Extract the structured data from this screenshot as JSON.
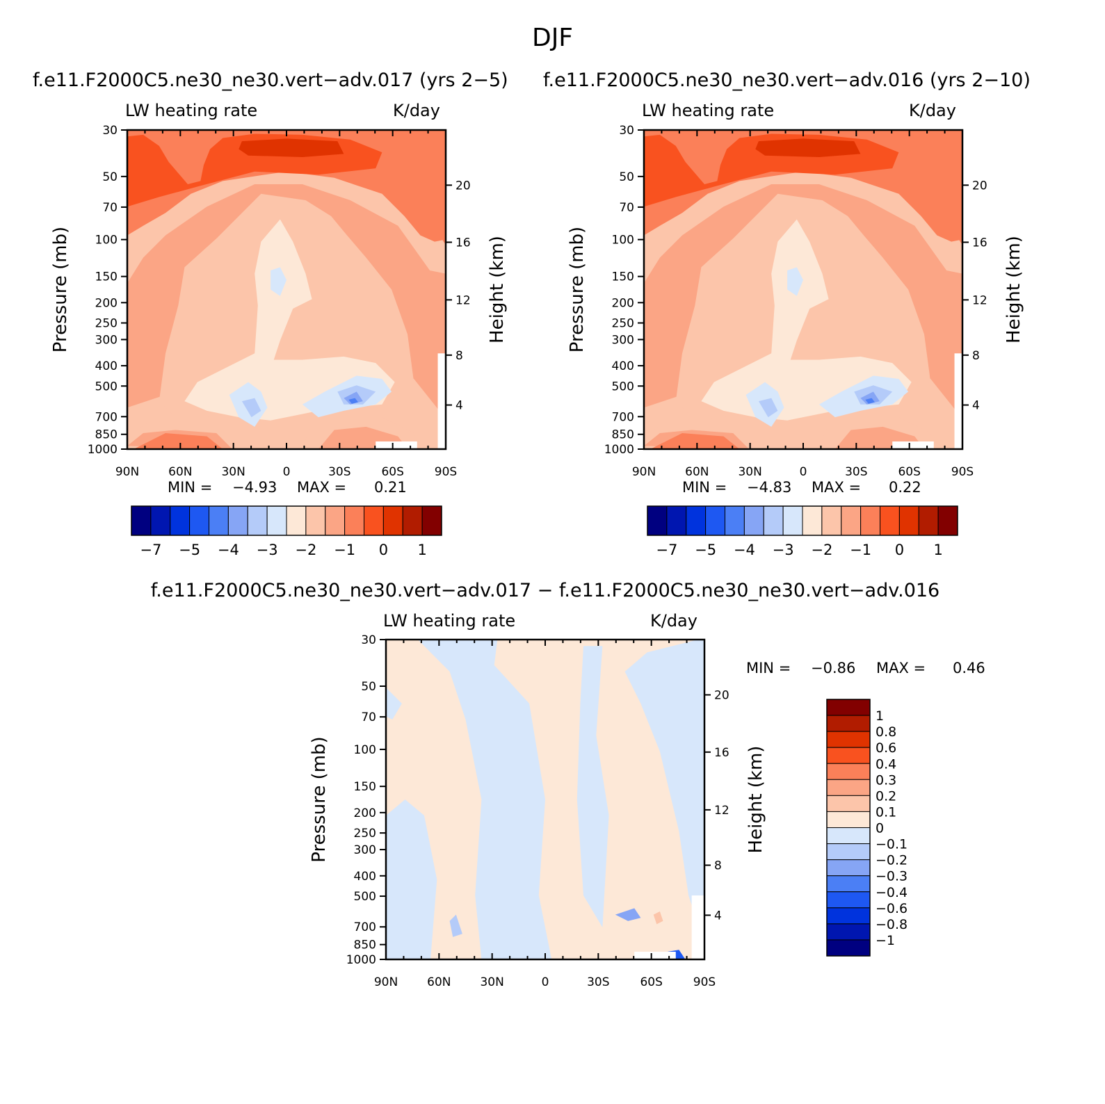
{
  "figure": {
    "title": "DJF"
  },
  "panels": [
    {
      "id": "p1",
      "title": "f.e11.F2000C5.ne30_ne30.vert−adv.017 (yrs 2−5)",
      "left_label": "LW heating rate",
      "right_label": "K/day",
      "y_label": "Pressure (mb)",
      "y2_label": "Height (km)",
      "min_text": "MIN =",
      "min_value": "−4.93",
      "max_text": "MAX =",
      "max_value": "0.21"
    },
    {
      "id": "p2",
      "title": "f.e11.F2000C5.ne30_ne30.vert−adv.016 (yrs 2−10)",
      "left_label": "LW heating rate",
      "right_label": "K/day",
      "y_label": "Pressure (mb)",
      "y2_label": "Height (km)",
      "min_text": "MIN =",
      "min_value": "−4.83",
      "max_text": "MAX =",
      "max_value": "0.22"
    },
    {
      "id": "p3",
      "title": "f.e11.F2000C5.ne30_ne30.vert−adv.017 − f.e11.F2000C5.ne30_ne30.vert−adv.016",
      "left_label": "LW heating rate",
      "right_label": "K/day",
      "y_label": "Pressure (mb)",
      "y2_label": "Height (km)",
      "min_text": "MIN =",
      "min_value": "−0.86",
      "max_text": "MAX =",
      "max_value": "0.46"
    }
  ],
  "colorbar_main": {
    "colors": [
      "#000080",
      "#0016b0",
      "#0033dd",
      "#1e58f2",
      "#4b7ff5",
      "#86a5f5",
      "#b4cbf9",
      "#d7e7fb",
      "#fde8d7",
      "#fcc5aa",
      "#fba585",
      "#fb8059",
      "#f9521f",
      "#e03300",
      "#b11c00",
      "#820000"
    ],
    "tick_labels": [
      "−7",
      "−5",
      "−4",
      "−3",
      "−2",
      "−1",
      "0",
      "1"
    ]
  },
  "colorbar_diff": {
    "colors_top_to_bottom": [
      "#820000",
      "#b11c00",
      "#e03300",
      "#f9521f",
      "#fb8059",
      "#fba585",
      "#fcc5aa",
      "#fde8d7",
      "#d7e7fb",
      "#b4cbf9",
      "#86a5f5",
      "#4b7ff5",
      "#1e58f2",
      "#0033dd",
      "#0016b0",
      "#000080"
    ],
    "tick_labels_top_to_bottom": [
      "1",
      "0.8",
      "0.6",
      "0.4",
      "0.3",
      "0.2",
      "0.1",
      "0",
      "−0.1",
      "−0.2",
      "−0.3",
      "−0.4",
      "−0.6",
      "−0.8",
      "−1"
    ]
  },
  "axes": {
    "x_ticks": [
      "90N",
      "60N",
      "30N",
      "0",
      "30S",
      "60S",
      "90S"
    ],
    "p_ticks": [
      "30",
      "50",
      "70",
      "100",
      "150",
      "200",
      "250",
      "300",
      "400",
      "500",
      "700",
      "850",
      "1000"
    ],
    "z_ticks": [
      "20",
      "16",
      "12",
      "8",
      "4"
    ]
  },
  "chart_data": [
    {
      "type": "heatmap",
      "title": "f.e11.F2000C5.ne30_ne30.vert−adv.017 (yrs 2−5)",
      "xlabel": "",
      "ylabel": "Pressure (mb)",
      "y2label": "Height (km)",
      "x_ticks": [
        "90N",
        "60N",
        "30N",
        "0",
        "30S",
        "60S",
        "90S"
      ],
      "x_values": [
        -90,
        -60,
        -30,
        0,
        30,
        60,
        90
      ],
      "y_ticks_pressure_mb": [
        30,
        50,
        70,
        100,
        150,
        200,
        250,
        300,
        400,
        500,
        700,
        850,
        1000
      ],
      "y2_ticks_km": [
        20,
        16,
        12,
        8,
        4
      ],
      "y_scale": "log",
      "units": "K/day",
      "min": -4.93,
      "max": 0.21,
      "contour_levels": [
        -7,
        -6,
        -5,
        -4.5,
        -4,
        -3.5,
        -3,
        -2.5,
        -2,
        -1.5,
        -1,
        -0.5,
        0,
        0.5,
        1
      ]
    },
    {
      "type": "heatmap",
      "title": "f.e11.F2000C5.ne30_ne30.vert−adv.016 (yrs 2−10)",
      "xlabel": "",
      "ylabel": "Pressure (mb)",
      "y2label": "Height (km)",
      "x_ticks": [
        "90N",
        "60N",
        "30N",
        "0",
        "30S",
        "60S",
        "90S"
      ],
      "x_values": [
        -90,
        -60,
        -30,
        0,
        30,
        60,
        90
      ],
      "y_ticks_pressure_mb": [
        30,
        50,
        70,
        100,
        150,
        200,
        250,
        300,
        400,
        500,
        700,
        850,
        1000
      ],
      "y2_ticks_km": [
        20,
        16,
        12,
        8,
        4
      ],
      "y_scale": "log",
      "units": "K/day",
      "min": -4.83,
      "max": 0.22,
      "contour_levels": [
        -7,
        -6,
        -5,
        -4.5,
        -4,
        -3.5,
        -3,
        -2.5,
        -2,
        -1.5,
        -1,
        -0.5,
        0,
        0.5,
        1
      ]
    },
    {
      "type": "heatmap",
      "title": "f.e11.F2000C5.ne30_ne30.vert−adv.017 − f.e11.F2000C5.ne30_ne30.vert−adv.016",
      "xlabel": "",
      "ylabel": "Pressure (mb)",
      "y2label": "Height (km)",
      "x_ticks": [
        "90N",
        "60N",
        "30N",
        "0",
        "30S",
        "60S",
        "90S"
      ],
      "x_values": [
        -90,
        -60,
        -30,
        0,
        30,
        60,
        90
      ],
      "y_ticks_pressure_mb": [
        30,
        50,
        70,
        100,
        150,
        200,
        250,
        300,
        400,
        500,
        700,
        850,
        1000
      ],
      "y2_ticks_km": [
        20,
        16,
        12,
        8,
        4
      ],
      "y_scale": "log",
      "units": "K/day",
      "min": -0.86,
      "max": 0.46,
      "contour_levels": [
        -1,
        -0.8,
        -0.6,
        -0.4,
        -0.3,
        -0.2,
        -0.1,
        0,
        0.1,
        0.2,
        0.3,
        0.4,
        0.6,
        0.8,
        1
      ]
    }
  ]
}
